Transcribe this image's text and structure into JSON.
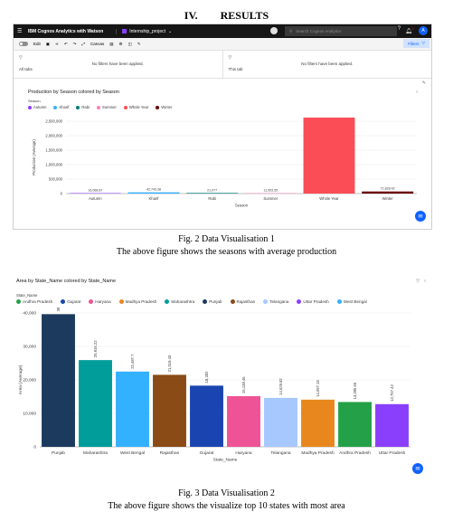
{
  "section": {
    "number": "IV.",
    "title": "RESULTS"
  },
  "app": {
    "brand": "IBM Cognos Analytics with Watson",
    "project": "Internship_project",
    "search_placeholder": "Search Cognos Analytics",
    "notification_count": "1",
    "avatar": "A",
    "toolbar": {
      "edit": "Edit",
      "canvas": "Canvas"
    },
    "filters_button": "Filters",
    "all_tabs_label": "All tabs",
    "this_tab_label": "This tab",
    "no_filters_msg": "No filters have been applied."
  },
  "colors": {
    "autumn": "#8a3ffc",
    "kharif": "#33b1ff",
    "rabi": "#007d79",
    "summer": "#ff7eb6",
    "whole_year": "#fa4d56",
    "winter": "#6a0000"
  },
  "captions": {
    "fig2_title": "Fig. 2 Data Visualisation 1",
    "fig2_desc": "The above figure shows the seasons with average production",
    "fig3_title": "Fig. 3 Data Visualisation 2",
    "fig3_desc": "The above figure shows the visualize top 10 states with most area"
  },
  "chart_data": [
    {
      "type": "bar",
      "title": "Production by Season colored by Season",
      "legend_title": "Season",
      "legend": [
        "Autumn",
        "Kharif",
        "Rabi",
        "Summer",
        "Whole Year",
        "Winter"
      ],
      "categories": [
        "Autumn",
        "Kharif",
        "Rabi",
        "Summer",
        "Whole Year",
        "Winter"
      ],
      "values": [
        16068.87,
        42743.38,
        21077,
        11953.55,
        2780079.29,
        71828.42
      ],
      "value_labels": [
        "16,068.87",
        "42,743.38",
        "21,077",
        "11,953.55",
        "2,780,079.29",
        "71,828.42"
      ],
      "colors": [
        "#8a3ffc",
        "#33b1ff",
        "#007d79",
        "#ff7eb6",
        "#fa4d56",
        "#6a0000"
      ],
      "xlabel": "Season",
      "ylabel": "Production (Average)",
      "yticks": [
        "0",
        "500,000",
        "1,000,000",
        "1,500,000",
        "2,000,000",
        "2,500,000"
      ],
      "ylim": [
        0,
        2500000
      ]
    },
    {
      "type": "bar",
      "title": "Area by State_Name colored by State_Name",
      "legend_title": "State_Name",
      "legend": [
        "Andhra Pradesh",
        "Gujarat",
        "Haryana",
        "Madhya Pradesh",
        "Maharashtra",
        "Punjab",
        "Rajasthan",
        "Telangana",
        "Uttar Pradesh",
        "West Bengal"
      ],
      "categories": [
        "Punjab",
        "Maharashtra",
        "West Bengal",
        "Rajasthan",
        "Gujarat",
        "Haryana",
        "Telangana",
        "Madhya Pradesh",
        "Andhra Pradesh",
        "Uttar Pradesh"
      ],
      "values": [
        39639.73,
        25916.22,
        22487.7,
        21519.43,
        18282,
        15138.46,
        14629.82,
        14097.16,
        13395.65,
        12757.42
      ],
      "value_labels": [
        "39,639.73",
        "25,916.22",
        "22,487.7",
        "21,519.43",
        "18,282",
        "15,138.46",
        "14,629.82",
        "14,097.16",
        "13,395.65",
        "12,757.42"
      ],
      "colors": [
        "#1c3a5e",
        "#009d9a",
        "#33b1ff",
        "#8a4b16",
        "#1a45b0",
        "#ee5396",
        "#a6c8ff",
        "#e8871e",
        "#24a148",
        "#8a3ffc"
      ],
      "legend_colors": [
        "#24a148",
        "#1a45b0",
        "#ee5396",
        "#e8871e",
        "#009d9a",
        "#1c3a5e",
        "#8a4b16",
        "#a6c8ff",
        "#8a3ffc",
        "#33b1ff"
      ],
      "xlabel": "State_Name",
      "ylabel": "Area (Average)",
      "yticks": [
        "0",
        "10,000",
        "20,000",
        "30,000",
        "40,000"
      ],
      "ylim": [
        0,
        40000
      ]
    }
  ]
}
